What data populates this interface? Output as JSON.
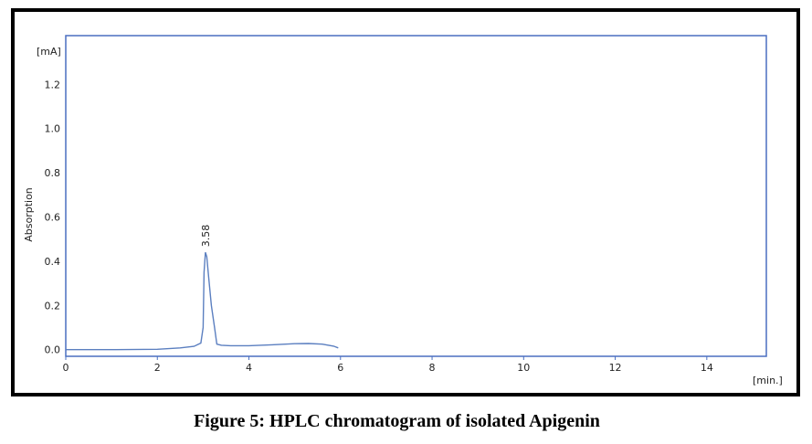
{
  "caption": "Figure 5: HPLC chromatogram of isolated Apigenin",
  "chart_data": {
    "type": "line",
    "ylabel": "Absorption",
    "y_unit": "[mA]",
    "x_unit": "[min.]",
    "xlim": [
      0,
      15.3
    ],
    "ylim": [
      -0.03,
      1.42
    ],
    "x_ticks": [
      0,
      2,
      4,
      6,
      8,
      10,
      12,
      14
    ],
    "x_tick_labels": [
      "0",
      "2",
      "4",
      "6",
      "8",
      "10",
      "12",
      "14"
    ],
    "y_ticks": [
      0.0,
      0.2,
      0.4,
      0.6,
      0.8,
      1.0,
      1.2
    ],
    "y_tick_labels": [
      "0.0",
      "0.2",
      "0.4",
      "0.6",
      "0.8",
      "1.0",
      "1.2"
    ],
    "grid": false,
    "line_color": "#5b7fc0",
    "series": [
      {
        "x": [
          0,
          1,
          2,
          2.5,
          2.8,
          2.95,
          3.0,
          3.02,
          3.05,
          3.08,
          3.12,
          3.18,
          3.25,
          3.3,
          3.4,
          3.6,
          4.0,
          4.5,
          5.0,
          5.3,
          5.6,
          5.85,
          5.95
        ],
        "y": [
          0.0,
          0.0,
          0.002,
          0.008,
          0.015,
          0.03,
          0.1,
          0.35,
          0.44,
          0.42,
          0.33,
          0.2,
          0.1,
          0.025,
          0.02,
          0.018,
          0.018,
          0.022,
          0.027,
          0.028,
          0.025,
          0.016,
          0.008
        ]
      }
    ],
    "annotations": [
      {
        "text": "3.58",
        "x": 3.05,
        "y": 0.44
      }
    ]
  }
}
